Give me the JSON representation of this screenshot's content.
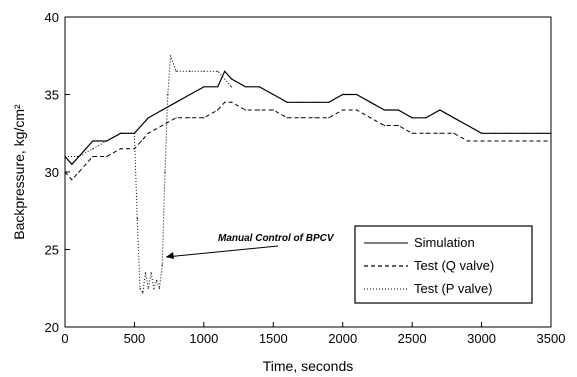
{
  "chart_data": {
    "type": "line",
    "xlabel": "Time, seconds",
    "ylabel": "Backpressure, kg/cm²",
    "xlim": [
      0,
      3500
    ],
    "ylim": [
      20,
      40
    ],
    "x_ticks": [
      0,
      500,
      1000,
      1500,
      2000,
      2500,
      3000,
      3500
    ],
    "y_ticks": [
      20,
      25,
      30,
      35,
      40
    ],
    "annotation": "Manual Control of BPCV",
    "legend_position": "lower-right",
    "series": [
      {
        "name": "Simulation",
        "style": "solid",
        "color": "#000000",
        "x": [
          0,
          50,
          100,
          150,
          200,
          300,
          400,
          500,
          550,
          600,
          700,
          800,
          900,
          1000,
          1100,
          1150,
          1200,
          1300,
          1400,
          1500,
          1600,
          1700,
          1800,
          1900,
          2000,
          2100,
          2200,
          2300,
          2400,
          2500,
          2600,
          2700,
          2800,
          2900,
          3000,
          3100,
          3200,
          3300,
          3400,
          3500
        ],
        "y": [
          31.0,
          30.5,
          31.0,
          31.5,
          32.0,
          32.0,
          32.5,
          32.5,
          33.0,
          33.5,
          34.0,
          34.5,
          35.0,
          35.5,
          35.5,
          36.5,
          36.0,
          35.5,
          35.5,
          35.0,
          34.5,
          34.5,
          34.5,
          34.5,
          35.0,
          35.0,
          34.5,
          34.0,
          34.0,
          33.5,
          33.5,
          34.0,
          33.5,
          33.0,
          32.5,
          32.5,
          32.5,
          32.5,
          32.5,
          32.5
        ]
      },
      {
        "name": "Test (Q valve)",
        "style": "dashed",
        "color": "#000000",
        "x": [
          0,
          50,
          100,
          150,
          200,
          300,
          400,
          500,
          550,
          600,
          700,
          800,
          900,
          1000,
          1100,
          1150,
          1200,
          1300,
          1400,
          1500,
          1600,
          1700,
          1800,
          1900,
          2000,
          2100,
          2200,
          2300,
          2400,
          2500,
          2600,
          2700,
          2800,
          2900,
          3000,
          3100,
          3200,
          3300,
          3400,
          3500
        ],
        "y": [
          30.0,
          29.5,
          30.0,
          30.5,
          31.0,
          31.0,
          31.5,
          31.5,
          32.0,
          32.5,
          33.0,
          33.5,
          33.5,
          33.5,
          34.0,
          34.5,
          34.5,
          34.0,
          34.0,
          34.0,
          33.5,
          33.5,
          33.5,
          33.5,
          34.0,
          34.0,
          33.5,
          33.0,
          33.0,
          32.5,
          32.5,
          32.5,
          32.5,
          32.0,
          32.0,
          32.0,
          32.0,
          32.0,
          32.0,
          32.0
        ]
      },
      {
        "name": "Test (P valve)",
        "style": "dotted",
        "color": "#000000",
        "x": [
          0,
          100,
          200,
          300,
          400,
          500,
          520,
          540,
          560,
          580,
          600,
          620,
          640,
          660,
          680,
          700,
          720,
          740,
          760,
          800,
          900,
          1000,
          1100,
          1200
        ],
        "y": [
          31.0,
          31.0,
          31.5,
          32.0,
          32.5,
          32.5,
          27.0,
          22.5,
          22.2,
          23.5,
          22.5,
          23.5,
          22.5,
          23.0,
          22.5,
          24.0,
          30.0,
          35.0,
          37.5,
          36.5,
          36.5,
          36.5,
          36.5,
          35.5
        ]
      }
    ]
  }
}
